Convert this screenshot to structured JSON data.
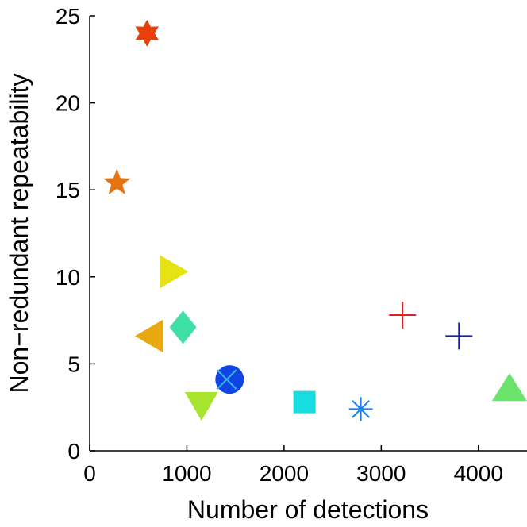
{
  "chart_data": {
    "type": "scatter",
    "title": "",
    "xlabel": "Number of detections",
    "ylabel": "Non−redundant repeatability",
    "xlim": [
      0,
      4500
    ],
    "ylim": [
      0,
      25
    ],
    "xticks": [
      0,
      1000,
      2000,
      3000,
      4000
    ],
    "yticks": [
      0,
      5,
      10,
      15,
      20,
      25
    ],
    "xtick_labels": [
      "0",
      "1000",
      "2000",
      "3000",
      "4000"
    ],
    "ytick_labels": [
      "0",
      "5",
      "10",
      "15",
      "20",
      "25"
    ],
    "grid": false,
    "legend": "none",
    "points": [
      {
        "name": "hexagram-orange-red",
        "x": 590,
        "y": 24.0,
        "marker": "hexagram",
        "color": "#e8400a"
      },
      {
        "name": "pentagram-orange",
        "x": 280,
        "y": 15.4,
        "marker": "pentagram",
        "color": "#e67312"
      },
      {
        "name": "triangle-right-yellow",
        "x": 860,
        "y": 10.3,
        "marker": "triangle-right",
        "color": "#e6e314"
      },
      {
        "name": "diamond-aquamarine",
        "x": 960,
        "y": 7.1,
        "marker": "diamond",
        "color": "#3fe0a6"
      },
      {
        "name": "triangle-left-gold",
        "x": 620,
        "y": 6.6,
        "marker": "triangle-left",
        "color": "#e8a810"
      },
      {
        "name": "circle-blue",
        "x": 1440,
        "y": 4.1,
        "marker": "circle",
        "color": "#1045e3"
      },
      {
        "name": "x-light-blue",
        "x": 1410,
        "y": 4.1,
        "marker": "x",
        "color": "#3ab0ef"
      },
      {
        "name": "triangle-down-lime",
        "x": 1150,
        "y": 2.6,
        "marker": "triangle-down",
        "color": "#a8e32e"
      },
      {
        "name": "square-cyan",
        "x": 2210,
        "y": 2.8,
        "marker": "square",
        "color": "#17dde0"
      },
      {
        "name": "asterisk-blue",
        "x": 2790,
        "y": 2.4,
        "marker": "asterisk",
        "color": "#1c7ff0"
      },
      {
        "name": "plus-red",
        "x": 3220,
        "y": 7.8,
        "marker": "plus",
        "color": "#e32020"
      },
      {
        "name": "plus-navy",
        "x": 3800,
        "y": 6.6,
        "marker": "plus",
        "color": "#1a1ab0"
      },
      {
        "name": "triangle-up-green",
        "x": 4320,
        "y": 3.6,
        "marker": "triangle-up",
        "color": "#6be36b"
      }
    ]
  }
}
